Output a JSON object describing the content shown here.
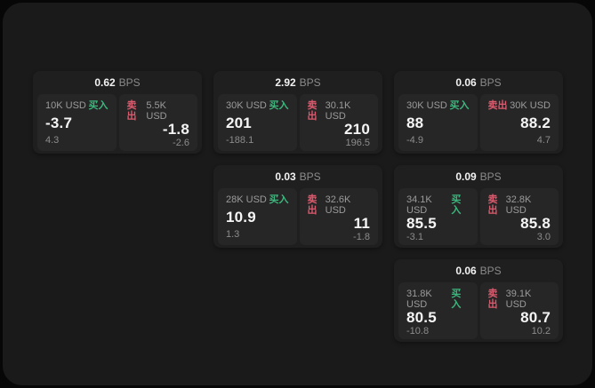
{
  "labels": {
    "bps_unit": "BPS",
    "buy": "买入",
    "sell": "卖出"
  },
  "colors": {
    "buy_green": "#3db77d",
    "sell_red": "#dc5a6e",
    "window_bg": "#1a1a1b",
    "card_bg": "#1f1f20",
    "panel_bg": "#262627"
  },
  "cards": [
    {
      "bps": "0.62",
      "buy": {
        "amount": "10K USD",
        "price": "-3.7",
        "delta": "4.3"
      },
      "sell": {
        "amount": "5.5K USD",
        "price": "-1.8",
        "delta": "-2.6"
      }
    },
    {
      "bps": "2.92",
      "buy": {
        "amount": "30K USD",
        "price": "201",
        "delta": "-188.1"
      },
      "sell": {
        "amount": "30.1K USD",
        "price": "210",
        "delta": "196.5"
      }
    },
    {
      "bps": "0.06",
      "buy": {
        "amount": "30K USD",
        "price": "88",
        "delta": "-4.9"
      },
      "sell": {
        "amount": "30K USD",
        "price": "88.2",
        "delta": "4.7"
      }
    },
    {
      "bps": "0.03",
      "buy": {
        "amount": "28K USD",
        "price": "10.9",
        "delta": "1.3"
      },
      "sell": {
        "amount": "32.6K USD",
        "price": "11",
        "delta": "-1.8"
      }
    },
    {
      "bps": "0.09",
      "buy": {
        "amount": "34.1K USD",
        "price": "85.5",
        "delta": "-3.1"
      },
      "sell": {
        "amount": "32.8K USD",
        "price": "85.8",
        "delta": "3.0"
      }
    },
    {
      "bps": "0.06",
      "buy": {
        "amount": "31.8K USD",
        "price": "80.5",
        "delta": "-10.8"
      },
      "sell": {
        "amount": "39.1K USD",
        "price": "80.7",
        "delta": "10.2"
      }
    }
  ]
}
